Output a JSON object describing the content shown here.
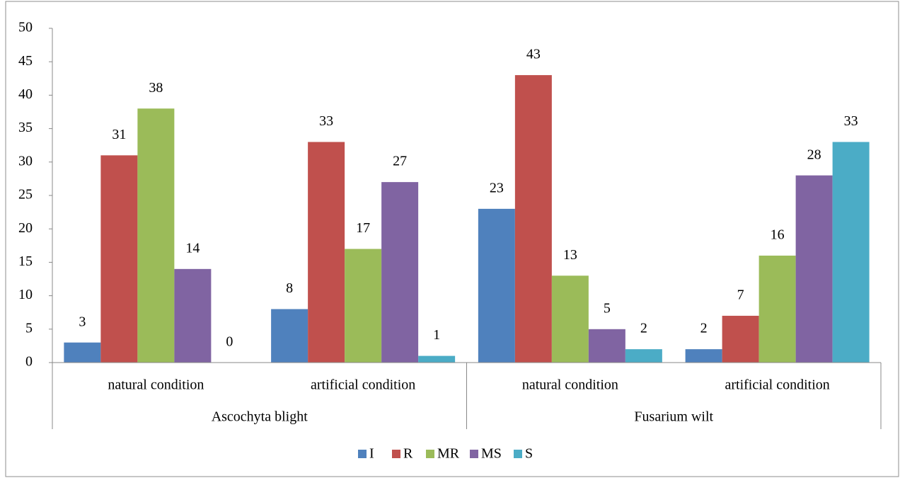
{
  "chart_data": {
    "type": "bar",
    "category_groups": [
      {
        "label": "Ascochyta blight",
        "categories": [
          "natural condition",
          "artificial condition"
        ]
      },
      {
        "label": "Fusarium wilt",
        "categories": [
          "natural condition",
          "artificial condition"
        ]
      }
    ],
    "series": [
      {
        "name": "I",
        "color": "#4f81bd",
        "values": [
          3,
          8,
          23,
          2
        ]
      },
      {
        "name": "R",
        "color": "#c0504d",
        "values": [
          31,
          33,
          43,
          7
        ]
      },
      {
        "name": "MR",
        "color": "#9bbb59",
        "values": [
          38,
          17,
          13,
          16
        ]
      },
      {
        "name": "MS",
        "color": "#8064a2",
        "values": [
          14,
          27,
          5,
          28
        ]
      },
      {
        "name": "S",
        "color": "#4bacc6",
        "values": [
          0,
          1,
          2,
          33
        ]
      }
    ],
    "ylim": [
      0,
      50
    ],
    "yticks": [
      0,
      5,
      10,
      15,
      20,
      25,
      30,
      35,
      40,
      45,
      50
    ],
    "grid": false,
    "data_labels": true,
    "legend": "bottom"
  }
}
